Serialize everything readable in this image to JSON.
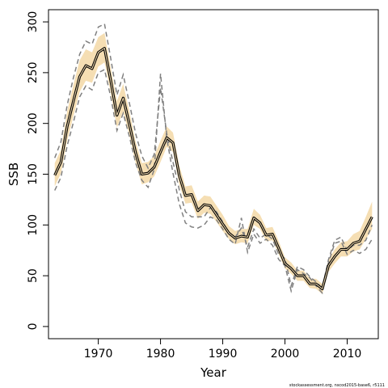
{
  "chart_data": {
    "type": "line",
    "xlabel": "Year",
    "ylabel": "SSB",
    "xlim": [
      1962,
      2015
    ],
    "ylim": [
      -12,
      312
    ],
    "x_ticks": [
      1970,
      1980,
      1990,
      2000,
      2010
    ],
    "y_ticks": [
      0,
      50,
      100,
      150,
      200,
      250,
      300
    ],
    "grid": false,
    "credit": "stockassessment.org, nscod2015-base6, r5111",
    "colors": {
      "band": "#f5deb3",
      "main": "#000000",
      "dashed": "#808080",
      "thin": "#404040"
    },
    "x": [
      1963,
      1964,
      1965,
      1966,
      1967,
      1968,
      1969,
      1970,
      1971,
      1972,
      1973,
      1974,
      1975,
      1976,
      1977,
      1978,
      1979,
      1980,
      1981,
      1982,
      1983,
      1984,
      1985,
      1986,
      1987,
      1988,
      1989,
      1990,
      1991,
      1992,
      1993,
      1994,
      1995,
      1996,
      1997,
      1998,
      1999,
      2000,
      2001,
      2002,
      2003,
      2004,
      2005,
      2006,
      2007,
      2008,
      2009,
      2010,
      2011,
      2012,
      2013,
      2014
    ],
    "series": [
      {
        "role": "estimate",
        "values": [
          149,
          162,
          197,
          222,
          246,
          257,
          254,
          270,
          274,
          242,
          208,
          225,
          199,
          171,
          150,
          151,
          157,
          172,
          186,
          181,
          149,
          129,
          130,
          114,
          120,
          119,
          110,
          101,
          92,
          87,
          89,
          88,
          107,
          102,
          90,
          91,
          77,
          62,
          57,
          50,
          50,
          42,
          42,
          37,
          60,
          69,
          76,
          76,
          82,
          84,
          96,
          108
        ]
      },
      {
        "role": "lower",
        "values": [
          138,
          151,
          183,
          207,
          231,
          242,
          240,
          256,
          260,
          230,
          196,
          212,
          188,
          161,
          140,
          142,
          148,
          162,
          177,
          172,
          140,
          121,
          122,
          106,
          112,
          111,
          103,
          94,
          86,
          81,
          83,
          82,
          100,
          96,
          84,
          85,
          71,
          57,
          52,
          45,
          45,
          38,
          37,
          32,
          54,
          62,
          69,
          69,
          74,
          76,
          86,
          96
        ]
      },
      {
        "role": "upper",
        "values": [
          161,
          174,
          212,
          238,
          262,
          273,
          270,
          285,
          289,
          255,
          222,
          239,
          212,
          182,
          161,
          162,
          168,
          183,
          197,
          191,
          159,
          138,
          139,
          123,
          129,
          128,
          119,
          110,
          99,
          94,
          96,
          96,
          116,
          110,
          97,
          98,
          84,
          68,
          63,
          55,
          55,
          47,
          47,
          42,
          66,
          76,
          83,
          84,
          91,
          94,
          108,
          123
        ]
      },
      {
        "role": "alternative",
        "values": [
          134,
          147,
          178,
          201,
          226,
          237,
          233,
          250,
          253,
          226,
          193,
          210,
          187,
          161,
          144,
          137,
          155,
          249,
          185,
          151,
          121,
          102,
          98,
          97,
          100,
          108,
          105,
          96,
          86,
          81,
          107,
          73,
          91,
          82,
          86,
          80,
          66,
          60,
          35,
          56,
          52,
          48,
          40,
          33,
          63,
          82,
          84,
          71,
          75,
          72,
          76,
          86
        ]
      },
      {
        "role": "alternative",
        "values": [
          166,
          182,
          218,
          245,
          268,
          281,
          278,
          295,
          298,
          264,
          228,
          248,
          220,
          190,
          168,
          156,
          170,
          235,
          190,
          162,
          135,
          113,
          108,
          108,
          108,
          117,
          113,
          103,
          92,
          88,
          97,
          78,
          96,
          87,
          91,
          86,
          71,
          67,
          40,
          59,
          56,
          49,
          44,
          38,
          66,
          85,
          88,
          75,
          80,
          80,
          85,
          100
        ]
      }
    ]
  }
}
